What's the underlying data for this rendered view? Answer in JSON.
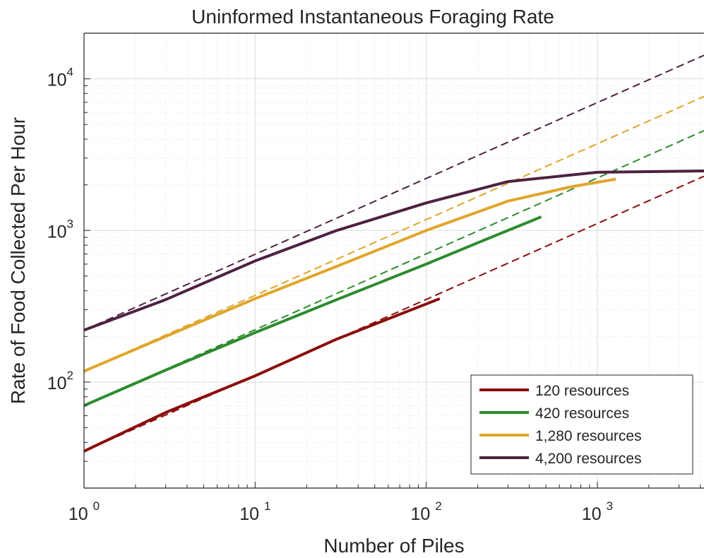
{
  "chart_data": {
    "type": "line",
    "title": "Uninformed Instantaneous Foraging Rate",
    "xlabel": "Number of Piles",
    "ylabel": "Rate of Food Collected Per Hour",
    "xscale": "log",
    "yscale": "log",
    "xlim": [
      1,
      4200
    ],
    "ylim": [
      20,
      20000
    ],
    "x_ticks": [
      {
        "value": 1,
        "base": "10",
        "exp": "0"
      },
      {
        "value": 10,
        "base": "10",
        "exp": "1"
      },
      {
        "value": 100,
        "base": "10",
        "exp": "2"
      },
      {
        "value": 1000,
        "base": "10",
        "exp": "3"
      }
    ],
    "y_ticks": [
      {
        "value": 100,
        "base": "10",
        "exp": "2"
      },
      {
        "value": 1000,
        "base": "10",
        "exp": "3"
      },
      {
        "value": 10000,
        "base": "10",
        "exp": "4"
      }
    ],
    "grid": true,
    "minor_grid": true,
    "legend_position": "bottom-right",
    "series": [
      {
        "name": "120 resources",
        "color": "#8b0d0d",
        "solid": {
          "x": [
            1,
            3,
            10,
            30,
            120
          ],
          "y": [
            35,
            63,
            110,
            192,
            355
          ]
        },
        "dashed": {
          "x": [
            1,
            4200
          ],
          "y": [
            35,
            2280
          ]
        }
      },
      {
        "name": "420 resources",
        "color": "#2e8b2e",
        "solid": {
          "x": [
            1,
            3,
            10,
            30,
            100,
            200,
            470
          ],
          "y": [
            70,
            120,
            212,
            350,
            600,
            830,
            1230
          ]
        },
        "dashed": {
          "x": [
            1,
            4200
          ],
          "y": [
            70,
            4550
          ]
        }
      },
      {
        "name": "1,280 resources",
        "color": "#e0a52a",
        "solid": {
          "x": [
            1,
            3,
            10,
            30,
            100,
            300,
            700,
            1280
          ],
          "y": [
            118,
            200,
            355,
            580,
            1000,
            1560,
            1940,
            2180
          ]
        },
        "dashed": {
          "x": [
            1,
            4200
          ],
          "y": [
            118,
            7650
          ]
        }
      },
      {
        "name": "4,200 resources",
        "color": "#4e2142",
        "solid": {
          "x": [
            1,
            3,
            10,
            30,
            100,
            300,
            1000,
            4200
          ],
          "y": [
            220,
            350,
            630,
            1000,
            1520,
            2100,
            2420,
            2470
          ]
        },
        "dashed": {
          "x": [
            1,
            4200
          ],
          "y": [
            220,
            14300
          ]
        }
      }
    ]
  }
}
